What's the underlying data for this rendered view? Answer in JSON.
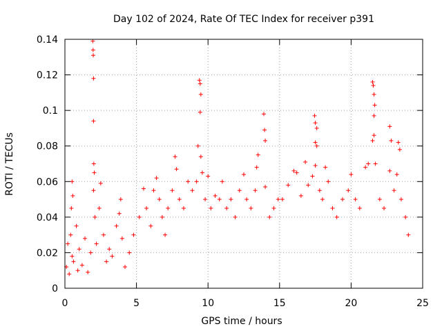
{
  "chart_data": {
    "type": "scatter",
    "title": "Day 102 of 2024, Rate Of TEC Index for receiver p391",
    "xlabel": "GPS time / hours",
    "ylabel": "ROTI / TECUs",
    "xlim": [
      0,
      25
    ],
    "ylim": [
      0,
      0.14
    ],
    "xticks": [
      0,
      5,
      10,
      15,
      20,
      25
    ],
    "xtick_labels": [
      "0",
      "5",
      "10",
      "15",
      "20",
      "25"
    ],
    "yticks": [
      0,
      0.02,
      0.04,
      0.06,
      0.08,
      0.1,
      0.12,
      0.14
    ],
    "ytick_labels": [
      "0",
      "0.02",
      "0.04",
      "0.06",
      "0.08",
      "0.1",
      "0.12",
      "0.14"
    ],
    "grid": true,
    "marker": "+",
    "color": "#ff0000",
    "series": [
      {
        "name": "ROTI",
        "points": [
          [
            0.1,
            0.012
          ],
          [
            0.2,
            0.025
          ],
          [
            0.3,
            0.008
          ],
          [
            0.4,
            0.03
          ],
          [
            0.5,
            0.018
          ],
          [
            0.5,
            0.06
          ],
          [
            0.55,
            0.052
          ],
          [
            0.45,
            0.045
          ],
          [
            0.6,
            0.015
          ],
          [
            0.8,
            0.035
          ],
          [
            0.9,
            0.01
          ],
          [
            1.0,
            0.022
          ],
          [
            1.2,
            0.013
          ],
          [
            1.4,
            0.028
          ],
          [
            1.6,
            0.009
          ],
          [
            1.8,
            0.02
          ],
          [
            1.95,
            0.139
          ],
          [
            1.97,
            0.134
          ],
          [
            1.98,
            0.131
          ],
          [
            2.0,
            0.118
          ],
          [
            2.0,
            0.094
          ],
          [
            2.02,
            0.07
          ],
          [
            2.05,
            0.065
          ],
          [
            2.0,
            0.055
          ],
          [
            2.1,
            0.04
          ],
          [
            2.2,
            0.025
          ],
          [
            2.4,
            0.045
          ],
          [
            2.5,
            0.059
          ],
          [
            2.7,
            0.03
          ],
          [
            2.9,
            0.015
          ],
          [
            3.1,
            0.022
          ],
          [
            3.3,
            0.018
          ],
          [
            3.6,
            0.035
          ],
          [
            3.8,
            0.042
          ],
          [
            3.9,
            0.05
          ],
          [
            4.0,
            0.028
          ],
          [
            4.2,
            0.012
          ],
          [
            4.5,
            0.02
          ],
          [
            4.8,
            0.03
          ],
          [
            5.2,
            0.04
          ],
          [
            5.5,
            0.056
          ],
          [
            5.7,
            0.045
          ],
          [
            6.0,
            0.035
          ],
          [
            6.2,
            0.055
          ],
          [
            6.4,
            0.062
          ],
          [
            6.6,
            0.05
          ],
          [
            6.8,
            0.04
          ],
          [
            7.0,
            0.03
          ],
          [
            7.2,
            0.045
          ],
          [
            7.5,
            0.055
          ],
          [
            7.7,
            0.074
          ],
          [
            7.8,
            0.067
          ],
          [
            8.0,
            0.05
          ],
          [
            8.3,
            0.045
          ],
          [
            8.6,
            0.06
          ],
          [
            8.9,
            0.055
          ],
          [
            9.2,
            0.06
          ],
          [
            9.3,
            0.08
          ],
          [
            9.4,
            0.117
          ],
          [
            9.45,
            0.115
          ],
          [
            9.5,
            0.109
          ],
          [
            9.45,
            0.099
          ],
          [
            9.5,
            0.074
          ],
          [
            9.6,
            0.065
          ],
          [
            9.8,
            0.05
          ],
          [
            10.0,
            0.063
          ],
          [
            10.2,
            0.045
          ],
          [
            10.5,
            0.052
          ],
          [
            10.8,
            0.05
          ],
          [
            11.0,
            0.06
          ],
          [
            11.3,
            0.045
          ],
          [
            11.6,
            0.05
          ],
          [
            11.9,
            0.04
          ],
          [
            12.2,
            0.055
          ],
          [
            12.5,
            0.064
          ],
          [
            12.7,
            0.05
          ],
          [
            13.0,
            0.045
          ],
          [
            13.3,
            0.055
          ],
          [
            13.4,
            0.068
          ],
          [
            13.5,
            0.075
          ],
          [
            13.9,
            0.098
          ],
          [
            13.95,
            0.089
          ],
          [
            14.0,
            0.083
          ],
          [
            14.0,
            0.057
          ],
          [
            14.3,
            0.04
          ],
          [
            14.6,
            0.045
          ],
          [
            14.9,
            0.05
          ],
          [
            15.2,
            0.05
          ],
          [
            15.6,
            0.058
          ],
          [
            16.0,
            0.066
          ],
          [
            16.2,
            0.065
          ],
          [
            16.5,
            0.052
          ],
          [
            16.8,
            0.071
          ],
          [
            17.0,
            0.058
          ],
          [
            17.3,
            0.063
          ],
          [
            17.45,
            0.097
          ],
          [
            17.5,
            0.093
          ],
          [
            17.6,
            0.09
          ],
          [
            17.5,
            0.082
          ],
          [
            17.6,
            0.08
          ],
          [
            17.5,
            0.069
          ],
          [
            17.8,
            0.055
          ],
          [
            18.0,
            0.05
          ],
          [
            18.2,
            0.068
          ],
          [
            18.4,
            0.06
          ],
          [
            18.7,
            0.045
          ],
          [
            19.0,
            0.04
          ],
          [
            19.4,
            0.05
          ],
          [
            19.8,
            0.055
          ],
          [
            20.0,
            0.064
          ],
          [
            20.3,
            0.05
          ],
          [
            20.6,
            0.045
          ],
          [
            21.0,
            0.068
          ],
          [
            21.2,
            0.07
          ],
          [
            21.5,
            0.116
          ],
          [
            21.55,
            0.114
          ],
          [
            21.6,
            0.109
          ],
          [
            21.65,
            0.103
          ],
          [
            21.6,
            0.097
          ],
          [
            21.6,
            0.086
          ],
          [
            21.5,
            0.083
          ],
          [
            21.7,
            0.07
          ],
          [
            22.0,
            0.05
          ],
          [
            22.3,
            0.045
          ],
          [
            22.7,
            0.091
          ],
          [
            22.8,
            0.083
          ],
          [
            22.7,
            0.066
          ],
          [
            23.0,
            0.055
          ],
          [
            23.2,
            0.064
          ],
          [
            23.3,
            0.082
          ],
          [
            23.4,
            0.078
          ],
          [
            23.5,
            0.05
          ],
          [
            23.8,
            0.04
          ],
          [
            24.0,
            0.03
          ]
        ]
      }
    ]
  }
}
